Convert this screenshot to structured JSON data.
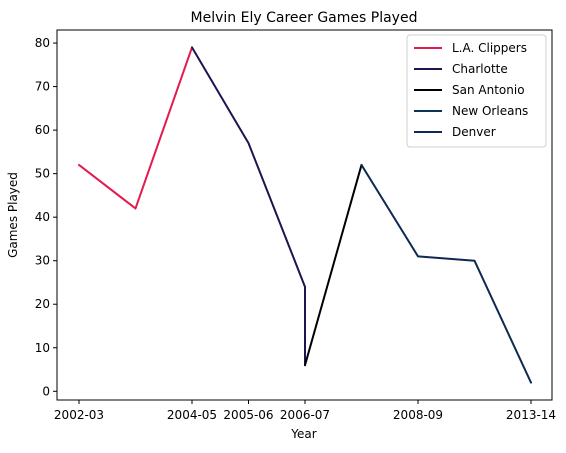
{
  "chart_data": {
    "type": "line",
    "title": "Melvin Ely Career Games Played",
    "xlabel": "Year",
    "ylabel": "Games Played",
    "ylim": [
      -2,
      83
    ],
    "yticks": [
      0,
      10,
      20,
      30,
      40,
      50,
      60,
      70,
      80
    ],
    "xtick_labels": [
      "2002-03",
      "2004-05",
      "2005-06",
      "2006-07",
      "2008-09",
      "2013-14"
    ],
    "legend_position": "top-right",
    "grid": false,
    "series": [
      {
        "name": "L.A. Clippers",
        "color": "#E31A4D",
        "points": [
          {
            "season": "2002-03",
            "value": 52
          },
          {
            "season": "2003-04",
            "value": 42
          },
          {
            "season": "2004-05",
            "value": 79
          }
        ]
      },
      {
        "name": "Charlotte",
        "color": "#21134F",
        "points": [
          {
            "season": "2004-05",
            "value": 79
          },
          {
            "season": "2005-06",
            "value": 57
          },
          {
            "season": "2006-07",
            "value": 24
          },
          {
            "season": "2006-07",
            "value": 6
          }
        ]
      },
      {
        "name": "San Antonio",
        "color": "#000000",
        "points": [
          {
            "season": "2006-07",
            "value": 6
          },
          {
            "season": "2007-08",
            "value": 52
          }
        ]
      },
      {
        "name": "New Orleans",
        "color": "#0B3557",
        "points": [
          {
            "season": "2007-08",
            "value": 52
          }
        ]
      },
      {
        "name": "Denver",
        "color": "#0E2A52",
        "points": [
          {
            "season": "2007-08",
            "value": 52
          },
          {
            "season": "2008-09",
            "value": 31
          },
          {
            "season": "2009-10",
            "value": 30
          },
          {
            "season": "2013-14",
            "value": 2
          }
        ]
      }
    ]
  }
}
